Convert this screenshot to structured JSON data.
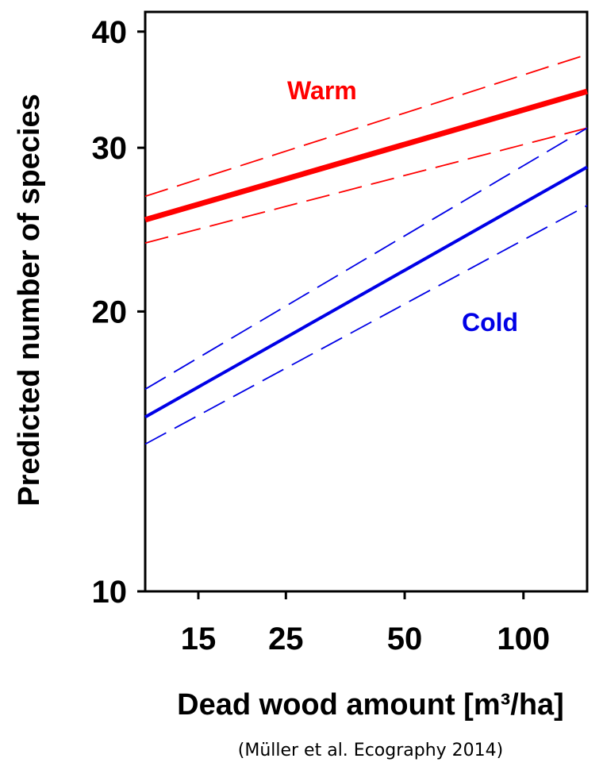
{
  "chart_data": {
    "type": "line",
    "title": "",
    "xlabel": "Dead wood amount [m³/ha]",
    "ylabel": "Predicted number of species",
    "x_scale": "log",
    "y_scale": "log",
    "xlim": [
      11,
      145
    ],
    "ylim": [
      10,
      42
    ],
    "x_ticks": [
      15,
      25,
      50,
      100
    ],
    "x_tick_labels": [
      "15",
      "25",
      "50",
      "100"
    ],
    "y_ticks": [
      10,
      20,
      30,
      40
    ],
    "y_tick_labels": [
      "10",
      "20",
      "30",
      "40"
    ],
    "grid": false,
    "legend": "none",
    "series": [
      {
        "name": "Warm",
        "color": "#ff0000",
        "style": "solid",
        "width": "thick",
        "x": [
          11,
          145
        ],
        "y": [
          25.1,
          34.5
        ]
      },
      {
        "name": "",
        "color": "#ff0000",
        "style": "dashed",
        "x": [
          11,
          145
        ],
        "y": [
          26.6,
          37.8
        ]
      },
      {
        "name": "",
        "color": "#ff0000",
        "style": "dashed",
        "x": [
          11,
          145
        ],
        "y": [
          23.7,
          31.5
        ]
      },
      {
        "name": "Cold",
        "color": "#0000e6",
        "style": "solid",
        "width": "medium",
        "x": [
          11,
          145
        ],
        "y": [
          15.4,
          28.6
        ]
      },
      {
        "name": "",
        "color": "#0000e6",
        "style": "dashed",
        "x": [
          11,
          145
        ],
        "y": [
          16.5,
          31.5
        ]
      },
      {
        "name": "",
        "color": "#0000e6",
        "style": "dashed",
        "x": [
          11,
          145
        ],
        "y": [
          14.4,
          26.0
        ]
      }
    ],
    "annotations": [
      {
        "text": "Warm",
        "color": "#ff0000"
      },
      {
        "text": "Cold",
        "color": "#0000e6"
      }
    ]
  },
  "source_note": "(Müller et al. Ecography 2014)"
}
